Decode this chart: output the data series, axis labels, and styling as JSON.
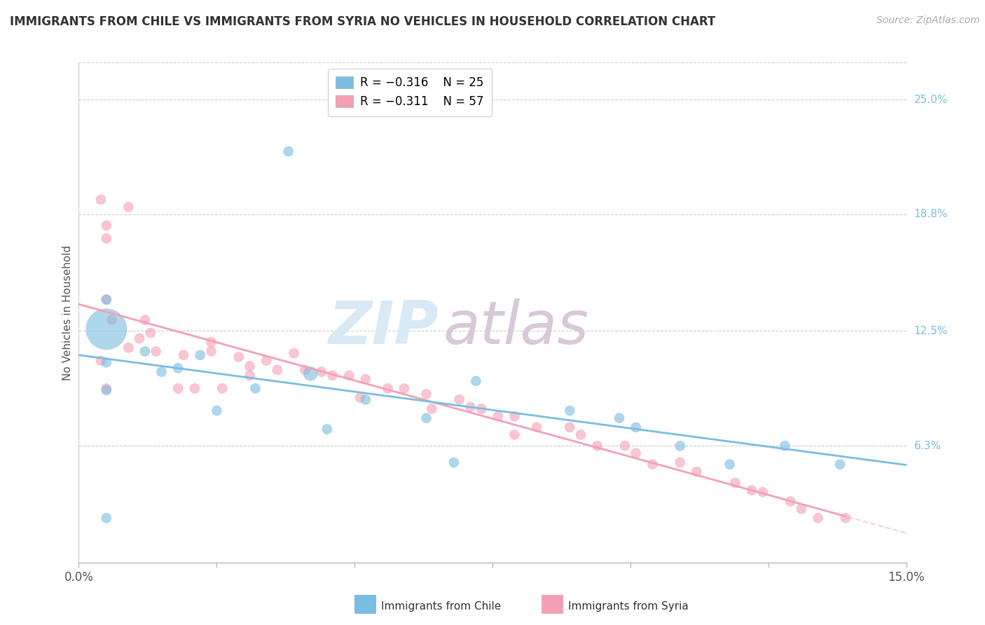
{
  "title": "IMMIGRANTS FROM CHILE VS IMMIGRANTS FROM SYRIA NO VEHICLES IN HOUSEHOLD CORRELATION CHART",
  "source_text": "Source: ZipAtlas.com",
  "ylabel": "No Vehicles in Household",
  "x_min": 0.0,
  "x_max": 0.15,
  "y_min": 0.0,
  "y_max": 0.27,
  "right_ytick_vals": [
    0.063,
    0.125,
    0.188,
    0.25
  ],
  "right_ytick_labels": [
    "6.3%",
    "12.5%",
    "18.8%",
    "25.0%"
  ],
  "chile_color": "#7bbde0",
  "syria_color": "#f4a0b4",
  "chile_legend": "R = −0.316    N = 25",
  "syria_legend": "R = −0.311    N = 57",
  "watermark_zip": "ZIP",
  "watermark_atlas": "atlas",
  "chile_x": [
    0.038,
    0.005,
    0.005,
    0.005,
    0.018,
    0.022,
    0.042,
    0.072,
    0.089,
    0.098,
    0.101,
    0.109,
    0.118,
    0.128,
    0.138,
    0.005,
    0.068,
    0.032,
    0.052,
    0.063,
    0.005,
    0.012,
    0.015,
    0.025,
    0.045
  ],
  "chile_y": [
    0.222,
    0.126,
    0.108,
    0.093,
    0.105,
    0.112,
    0.102,
    0.098,
    0.082,
    0.078,
    0.073,
    0.063,
    0.053,
    0.063,
    0.053,
    0.024,
    0.054,
    0.094,
    0.088,
    0.078,
    0.142,
    0.114,
    0.103,
    0.082,
    0.072
  ],
  "chile_size": [
    40,
    700,
    40,
    40,
    40,
    40,
    80,
    40,
    40,
    40,
    40,
    40,
    40,
    40,
    40,
    40,
    40,
    40,
    40,
    40,
    40,
    40,
    40,
    40,
    40
  ],
  "syria_x": [
    0.004,
    0.009,
    0.005,
    0.004,
    0.009,
    0.011,
    0.014,
    0.019,
    0.024,
    0.024,
    0.029,
    0.031,
    0.034,
    0.039,
    0.044,
    0.049,
    0.052,
    0.056,
    0.059,
    0.063,
    0.064,
    0.069,
    0.071,
    0.073,
    0.076,
    0.079,
    0.083,
    0.079,
    0.089,
    0.091,
    0.094,
    0.099,
    0.101,
    0.104,
    0.109,
    0.112,
    0.119,
    0.122,
    0.124,
    0.129,
    0.131,
    0.134,
    0.139,
    0.005,
    0.006,
    0.012,
    0.013,
    0.021,
    0.026,
    0.031,
    0.036,
    0.041,
    0.046,
    0.051,
    0.005,
    0.018,
    0.005
  ],
  "syria_y": [
    0.196,
    0.192,
    0.182,
    0.109,
    0.116,
    0.121,
    0.114,
    0.112,
    0.119,
    0.114,
    0.111,
    0.106,
    0.109,
    0.113,
    0.103,
    0.101,
    0.099,
    0.094,
    0.094,
    0.091,
    0.083,
    0.088,
    0.084,
    0.083,
    0.079,
    0.079,
    0.073,
    0.069,
    0.073,
    0.069,
    0.063,
    0.063,
    0.059,
    0.053,
    0.054,
    0.049,
    0.043,
    0.039,
    0.038,
    0.033,
    0.029,
    0.024,
    0.024,
    0.142,
    0.131,
    0.131,
    0.124,
    0.094,
    0.094,
    0.101,
    0.104,
    0.104,
    0.101,
    0.089,
    0.094,
    0.094,
    0.175
  ],
  "syria_size": [
    40,
    40,
    40,
    40,
    40,
    40,
    40,
    40,
    40,
    40,
    40,
    40,
    40,
    40,
    40,
    40,
    40,
    40,
    40,
    40,
    40,
    40,
    40,
    40,
    40,
    40,
    40,
    40,
    40,
    40,
    40,
    40,
    40,
    40,
    40,
    40,
    40,
    40,
    40,
    40,
    40,
    40,
    40,
    40,
    40,
    40,
    40,
    40,
    40,
    40,
    40,
    40,
    40,
    40,
    40,
    40,
    40
  ]
}
